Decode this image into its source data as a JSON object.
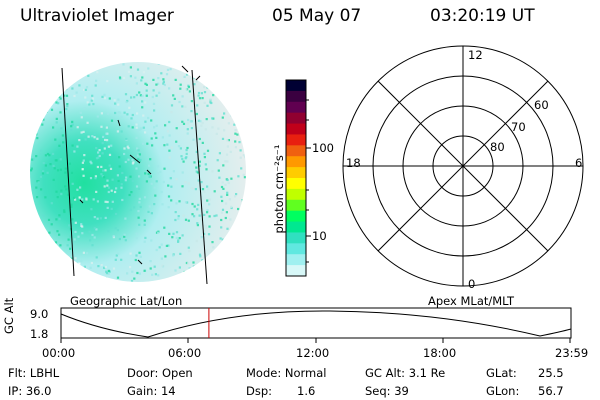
{
  "header": {
    "instrument": "Ultraviolet Imager",
    "date": "05 May 07",
    "time": "03:20:19 UT"
  },
  "colorbar": {
    "label": "photon cm⁻²s⁻¹",
    "ticks": [
      "100",
      "10"
    ],
    "colors": [
      "#000033",
      "#3a0040",
      "#600050",
      "#900030",
      "#c0001a",
      "#e82010",
      "#f06010",
      "#ff9900",
      "#ffcc00",
      "#ffff00",
      "#c0ff00",
      "#60ff20",
      "#00ff60",
      "#00e890",
      "#30e0c0",
      "#60e8e0",
      "#a0f0f0",
      "#d8f8f8"
    ]
  },
  "image_panel": {
    "label": "Geographic Lat/Lon"
  },
  "polar_plot": {
    "label": "Apex MLat/MLT",
    "mlt_labels": {
      "top": "12",
      "left": "18",
      "right": "6",
      "bottom": "0"
    },
    "lat_labels": [
      "60",
      "70",
      "80"
    ]
  },
  "altitude_plot": {
    "ylabel": "GC Alt",
    "yticks": [
      "9.0",
      "1.8"
    ],
    "xticks": [
      "00:00",
      "06:00",
      "12:00",
      "18:00",
      "23:59"
    ],
    "current_time_fraction": 0.29
  },
  "info": {
    "flt": "Flt: LBHL",
    "door": "Door: Open",
    "mode": "Mode: Normal",
    "gc_alt": "GC Alt: 3.1 Re",
    "glat_label": "GLat:",
    "glat_value": "25.5",
    "ip": "IP: 36.0",
    "gain": "Gain: 14",
    "dsp_label": "Dsp:",
    "dsp_value": "1.6",
    "seq": "Seq: 39",
    "glon_label": "GLon:",
    "glon_value": "56.7"
  }
}
